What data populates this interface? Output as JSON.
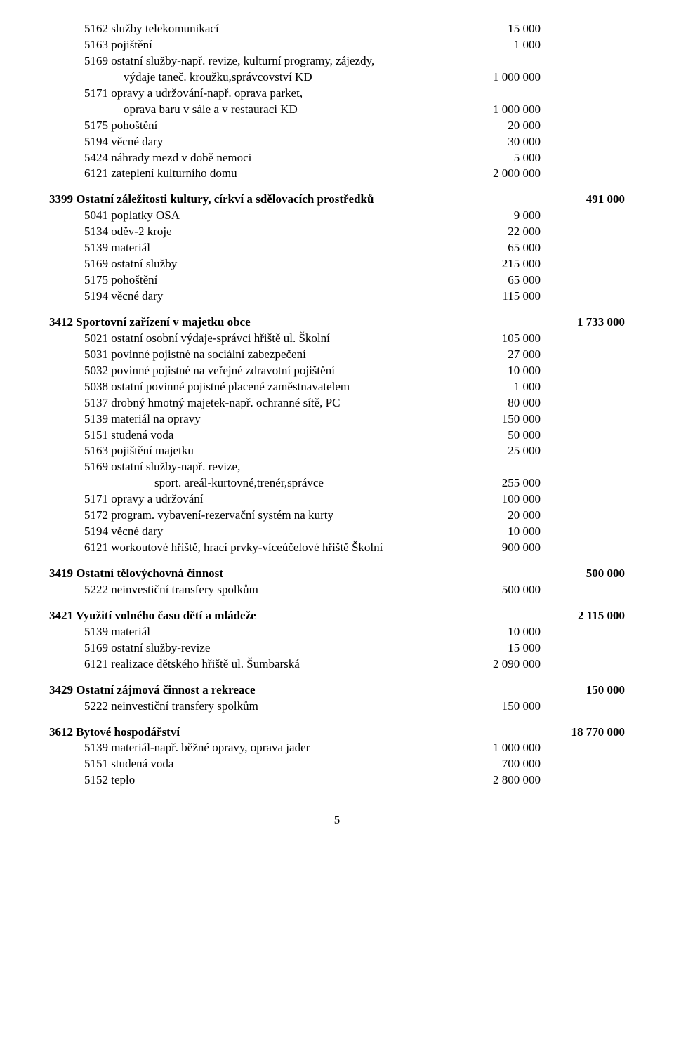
{
  "page_number": "5",
  "sections": [
    {
      "heading": null,
      "total": null,
      "rows": [
        {
          "label": "5162 služby telekomunikací",
          "a": "15 000",
          "indent": 1
        },
        {
          "label": "5163 pojištění",
          "a": "1 000",
          "indent": 1
        },
        {
          "label": "5169 ostatní služby-např. revize, kulturní programy, zájezdy,",
          "a": "",
          "indent": 1
        },
        {
          "label": "výdaje taneč. kroužku,správcovství KD",
          "a": "1 000 000",
          "indent": 2
        },
        {
          "label": "5171 opravy a udržování-např. oprava parket,",
          "a": "",
          "indent": 1
        },
        {
          "label": "oprava baru v sále a v restauraci KD",
          "a": "1 000 000",
          "indent": 2
        },
        {
          "label": "5175 pohoštění",
          "a": "20 000",
          "indent": 1
        },
        {
          "label": "5194 věcné dary",
          "a": "30 000",
          "indent": 1
        },
        {
          "label": "5424 náhrady mezd v době nemoci",
          "a": "5 000",
          "indent": 1
        },
        {
          "label": "6121 zateplení kulturního domu",
          "a": "2 000 000",
          "indent": 1
        }
      ]
    },
    {
      "heading": "3399 Ostatní záležitosti kultury, církví a sdělovacích prostředků",
      "total": "491 000",
      "rows": [
        {
          "label": "5041 poplatky OSA",
          "a": "9 000",
          "indent": 1
        },
        {
          "label": "5134 oděv-2 kroje",
          "a": "22 000",
          "indent": 1
        },
        {
          "label": "5139 materiál",
          "a": "65 000",
          "indent": 1
        },
        {
          "label": "5169 ostatní služby",
          "a": "215 000",
          "indent": 1
        },
        {
          "label": "5175 pohoštění",
          "a": "65 000",
          "indent": 1
        },
        {
          "label": "5194 věcné dary",
          "a": "115 000",
          "indent": 1
        }
      ]
    },
    {
      "heading": "3412 Sportovní zařízení v majetku obce",
      "total": "1 733 000",
      "rows": [
        {
          "label": "5021 ostatní osobní výdaje-správci hřiště ul. Školní",
          "a": "105 000",
          "indent": 1
        },
        {
          "label": "5031 povinné pojistné na sociální zabezpečení",
          "a": "27 000",
          "indent": 1
        },
        {
          "label": "5032 povinné pojistné na veřejné zdravotní pojištění",
          "a": "10 000",
          "indent": 1
        },
        {
          "label": "5038 ostatní povinné pojistné placené zaměstnavatelem",
          "a": "1 000",
          "indent": 1
        },
        {
          "label": "5137 drobný hmotný majetek-např. ochranné sítě, PC",
          "a": "80 000",
          "indent": 1
        },
        {
          "label": "5139 materiál na opravy",
          "a": "150 000",
          "indent": 1
        },
        {
          "label": "5151 studená voda",
          "a": "50 000",
          "indent": 1
        },
        {
          "label": "5163 pojištění majetku",
          "a": "25 000",
          "indent": 1
        },
        {
          "label": "5169 ostatní služby-např. revize,",
          "a": "",
          "indent": 1
        },
        {
          "label": "sport. areál-kurtovné,trenér,správce",
          "a": "255 000",
          "indent": 3
        },
        {
          "label": "5171 opravy a udržování",
          "a": "100 000",
          "indent": 1
        },
        {
          "label": "5172 program. vybavení-rezervační systém na kurty",
          "a": "20 000",
          "indent": 1
        },
        {
          "label": "5194 věcné dary",
          "a": "10 000",
          "indent": 1
        },
        {
          "label": "6121 workoutové hřiště, hrací prvky-víceúčelové hřiště Školní",
          "a": "900 000",
          "indent": 1
        }
      ]
    },
    {
      "heading": "3419 Ostatní tělovýchovná činnost",
      "total": "500 000",
      "rows": [
        {
          "label": "5222 neinvestiční transfery spolkům",
          "a": "500 000",
          "indent": 1
        }
      ]
    },
    {
      "heading": "3421 Využití volného času dětí a mládeže",
      "total": "2 115 000",
      "rows": [
        {
          "label": "5139 materiál",
          "a": "10 000",
          "indent": 1
        },
        {
          "label": "5169 ostatní služby-revize",
          "a": "15 000",
          "indent": 1
        },
        {
          "label": "6121 realizace dětského hřiště ul. Šumbarská",
          "a": "2 090 000",
          "indent": 1
        }
      ]
    },
    {
      "heading": "3429 Ostatní zájmová činnost a rekreace",
      "total": "150 000",
      "rows": [
        {
          "label": "5222 neinvestiční transfery spolkům",
          "a": "150 000",
          "indent": 1
        }
      ]
    },
    {
      "heading": "3612 Bytové hospodářství",
      "total": "18 770 000",
      "rows": [
        {
          "label": "5139 materiál-např. běžné opravy, oprava jader",
          "a": "1 000 000",
          "indent": 1
        },
        {
          "label": "5151 studená voda",
          "a": "700 000",
          "indent": 1
        },
        {
          "label": "5152 teplo",
          "a": "2 800 000",
          "indent": 1
        }
      ]
    }
  ]
}
